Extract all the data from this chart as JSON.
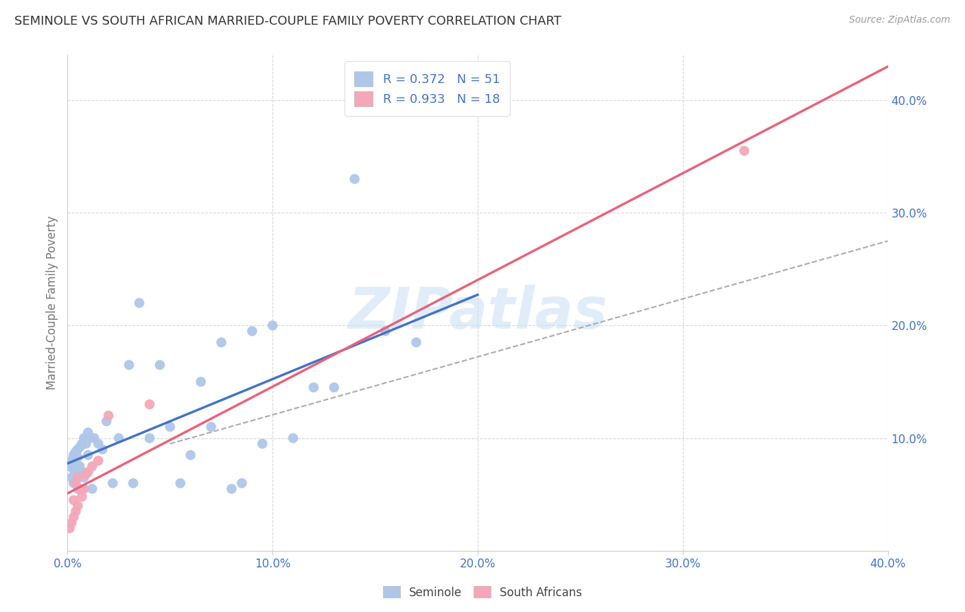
{
  "title": "SEMINOLE VS SOUTH AFRICAN MARRIED-COUPLE FAMILY POVERTY CORRELATION CHART",
  "source": "Source: ZipAtlas.com",
  "ylabel": "Married-Couple Family Poverty",
  "watermark": "ZIPatlas",
  "seminole_R": 0.372,
  "seminole_N": 51,
  "sa_R": 0.933,
  "sa_N": 18,
  "seminole_color": "#aec6e8",
  "sa_color": "#f4a7b9",
  "seminole_line_color": "#4472c4",
  "sa_line_color": "#e8627a",
  "trend_line_color": "#aaaaaa",
  "legend_text_color": "#4472c4",
  "axis_color": "#4472c4",
  "title_color": "#333333",
  "xlim": [
    0.0,
    0.4
  ],
  "ylim": [
    0.0,
    0.44
  ],
  "seminole_x": [
    0.001,
    0.002,
    0.002,
    0.003,
    0.003,
    0.003,
    0.004,
    0.004,
    0.004,
    0.005,
    0.005,
    0.005,
    0.006,
    0.006,
    0.007,
    0.007,
    0.008,
    0.008,
    0.009,
    0.01,
    0.01,
    0.011,
    0.012,
    0.013,
    0.015,
    0.017,
    0.019,
    0.022,
    0.025,
    0.03,
    0.032,
    0.035,
    0.04,
    0.045,
    0.05,
    0.055,
    0.06,
    0.065,
    0.07,
    0.075,
    0.08,
    0.085,
    0.09,
    0.095,
    0.1,
    0.11,
    0.12,
    0.13,
    0.14,
    0.155,
    0.17
  ],
  "seminole_y": [
    0.075,
    0.08,
    0.065,
    0.085,
    0.072,
    0.06,
    0.088,
    0.078,
    0.068,
    0.09,
    0.083,
    0.055,
    0.092,
    0.075,
    0.095,
    0.07,
    0.1,
    0.065,
    0.095,
    0.105,
    0.085,
    0.1,
    0.055,
    0.1,
    0.095,
    0.09,
    0.115,
    0.06,
    0.1,
    0.165,
    0.06,
    0.22,
    0.1,
    0.165,
    0.11,
    0.06,
    0.085,
    0.15,
    0.11,
    0.185,
    0.055,
    0.06,
    0.195,
    0.095,
    0.2,
    0.1,
    0.145,
    0.145,
    0.33,
    0.195,
    0.185
  ],
  "sa_x": [
    0.001,
    0.002,
    0.003,
    0.003,
    0.004,
    0.004,
    0.005,
    0.005,
    0.006,
    0.007,
    0.008,
    0.009,
    0.01,
    0.012,
    0.015,
    0.02,
    0.04,
    0.33
  ],
  "sa_y": [
    0.02,
    0.025,
    0.03,
    0.045,
    0.035,
    0.06,
    0.04,
    0.065,
    0.055,
    0.048,
    0.055,
    0.068,
    0.07,
    0.075,
    0.08,
    0.12,
    0.13,
    0.355
  ],
  "sem_line_x": [
    0.0,
    0.2
  ],
  "sem_line_y": [
    0.082,
    0.185
  ],
  "sa_line_x": [
    0.0,
    0.4
  ],
  "sa_line_y": [
    0.005,
    0.425
  ],
  "dash_line_x": [
    0.05,
    0.4
  ],
  "dash_line_y": [
    0.095,
    0.275
  ]
}
